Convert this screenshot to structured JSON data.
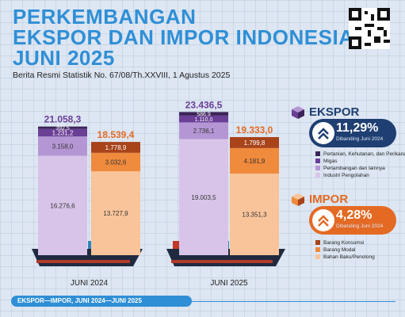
{
  "header": {
    "title_line1": "PERKEMBANGAN",
    "title_line2": "EKSPOR DAN IMPOR INDONESIA",
    "title_line3": "JUNI 2025",
    "subtitle": "Berita Resmi Statistik No. 67/08/Th.XXVIII, 1 Agustus 2025"
  },
  "chart_data": {
    "type": "bar",
    "stacked": true,
    "categories": [
      "JUNI 2024",
      "JUNI 2025"
    ],
    "ekspor": {
      "totals": [
        "21.058,3",
        "23.436,5"
      ],
      "series": [
        {
          "name": "Industri Pengolahan",
          "values": [
            16276.6,
            19003.5
          ],
          "labels": [
            "16.276,6",
            "19.003,5"
          ],
          "color": "#d8c4e8"
        },
        {
          "name": "Pertambangan dan lainnya",
          "values": [
            3158.0,
            2736.1
          ],
          "labels": [
            "3.158,0",
            "2.736,1"
          ],
          "color": "#b596d4"
        },
        {
          "name": "Migas",
          "values": [
            1231.2,
            1110.0
          ],
          "labels": [
            "1.231,2",
            "1.110,0"
          ],
          "color": "#6a3f96"
        },
        {
          "name": "Pertanian, Kehutanan, dan Perikanan",
          "values": [
            392.5,
            586.9
          ],
          "labels": [
            "392,5",
            "586,9"
          ],
          "color": "#3b2458"
        }
      ]
    },
    "impor": {
      "totals": [
        "18.539,4",
        "19.333,0"
      ],
      "series": [
        {
          "name": "Bahan Baku/Penolong",
          "values": [
            13727.9,
            13351.3
          ],
          "labels": [
            "13.727,9",
            "13.351,3"
          ],
          "color": "#f9c49a"
        },
        {
          "name": "Barang Modal",
          "values": [
            3032.6,
            4181.9
          ],
          "labels": [
            "3.032,6",
            "4.181,9"
          ],
          "color": "#f08a3c"
        },
        {
          "name": "Barang Konsumsi",
          "values": [
            1778.9,
            1799.8
          ],
          "labels": [
            "1.778,9",
            "1.799,8"
          ],
          "color": "#a8431a"
        }
      ]
    },
    "ylim": [
      0,
      24000
    ]
  },
  "ekspor_panel": {
    "heading": "EKSPOR",
    "growth": "11,29%",
    "note": "Dibanding Juni 2024",
    "legend": [
      {
        "label": "Pertanian, Kehutanan, dan Perikanan",
        "color": "#3b2458"
      },
      {
        "label": "Migas",
        "color": "#6a3f96"
      },
      {
        "label": "Pertambangan dan lainnya",
        "color": "#b596d4"
      },
      {
        "label": "Industri Pengolahan",
        "color": "#d8c4e8"
      }
    ]
  },
  "impor_panel": {
    "heading": "IMPOR",
    "growth": "4,28%",
    "note": "Dibanding Juni 2024",
    "legend": [
      {
        "label": "Barang Konsumsi",
        "color": "#a8431a"
      },
      {
        "label": "Barang Modal",
        "color": "#f08a3c"
      },
      {
        "label": "Bahan Baku/Penolong",
        "color": "#f9c49a"
      }
    ]
  },
  "footer": {
    "label": "EKSPOR—IMPOR, JUNI 2024—JUNI 2025"
  },
  "colors": {
    "ekspor_total": "#6a3f96",
    "impor_total": "#e46a24",
    "title": "#2f8fd6",
    "navy": "#1f3f73"
  }
}
